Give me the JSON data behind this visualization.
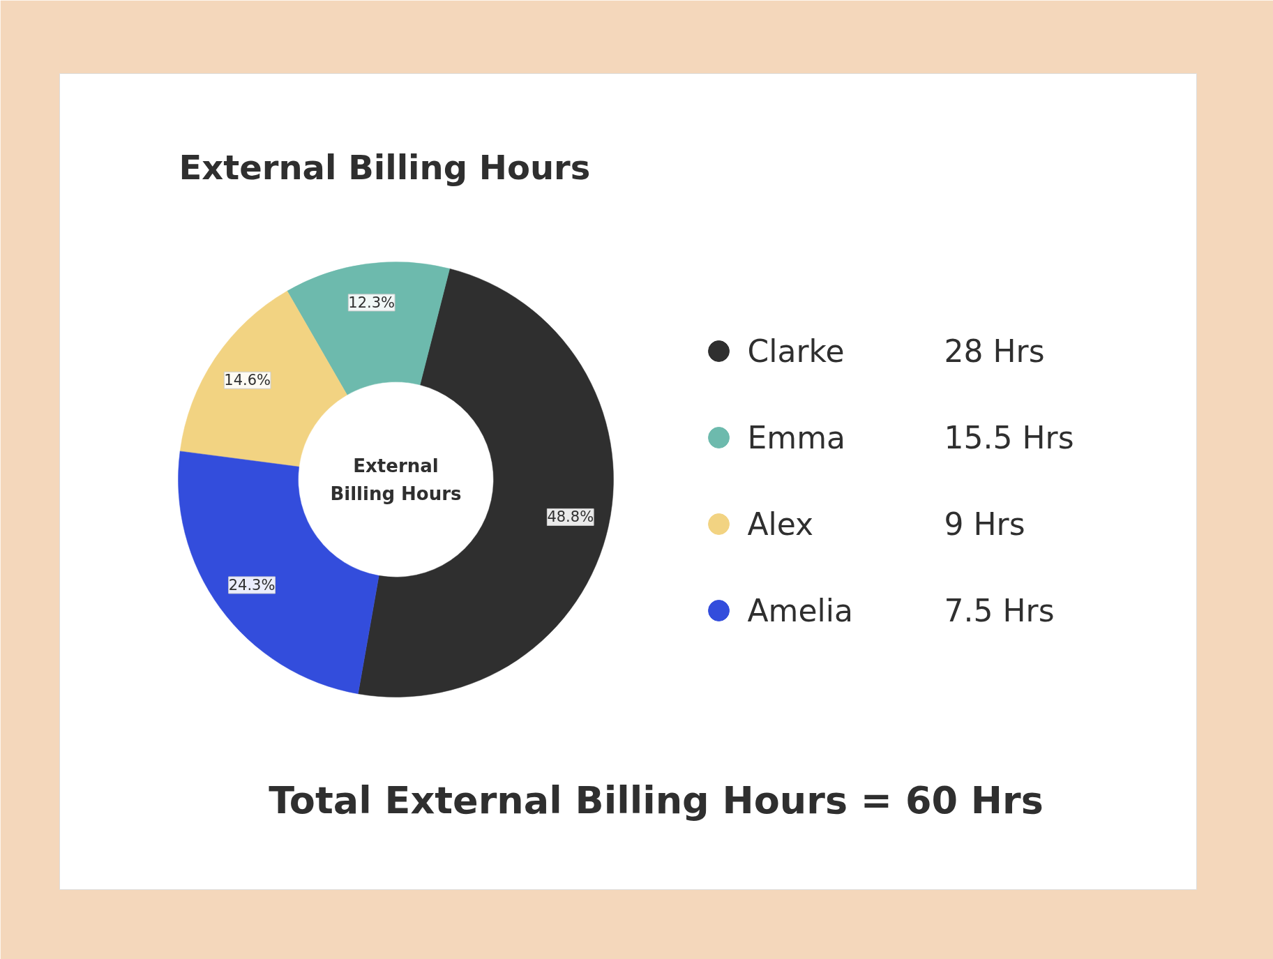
{
  "chart_data": {
    "type": "donut",
    "title": "External Billing Hours",
    "categories": [
      "Clarke",
      "Emma",
      "Alex",
      "Amelia"
    ],
    "values": [
      48.8,
      12.3,
      14.6,
      24.3
    ],
    "colors": [
      "#2f2f2f",
      "#6dbaad",
      "#f2d382",
      "#334ddc"
    ],
    "value_labels": [
      "48.8%",
      "12.3%",
      "14.6%",
      "24.3%"
    ],
    "legend": "right",
    "annotations": [
      "28 Hrs",
      "15.5 Hrs",
      "9 Hrs",
      "7.5 Hrs",
      "External\nBilling Hours",
      "Total External Billing Hours = 60 Hrs"
    ]
  }
}
